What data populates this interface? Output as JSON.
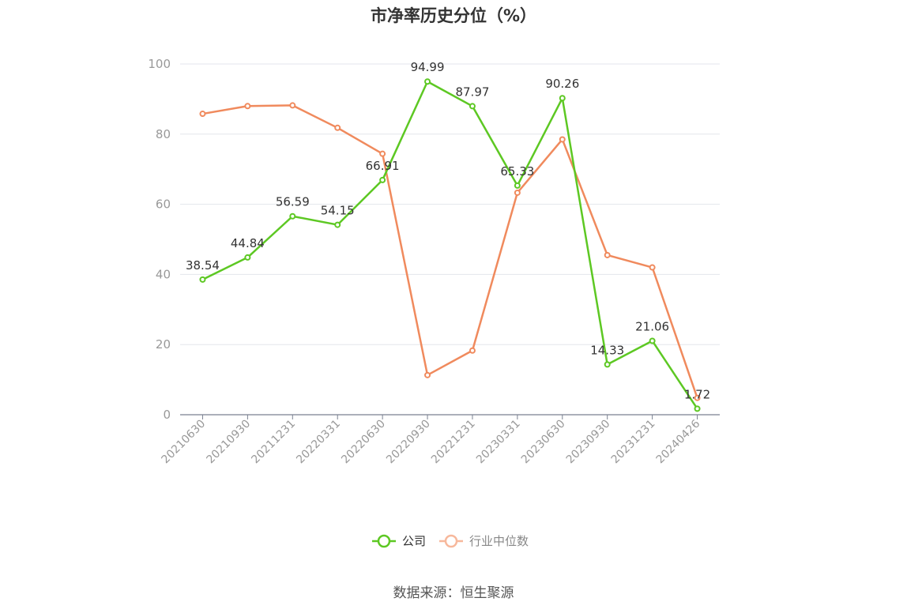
{
  "chart_data": {
    "type": "line",
    "title": "市净率历史分位（%）",
    "categories": [
      "20210630",
      "20210930",
      "20211231",
      "20220331",
      "20220630",
      "20220930",
      "20221231",
      "20230331",
      "20230630",
      "20230930",
      "20231231",
      "20240426"
    ],
    "ylim": [
      0,
      100
    ],
    "yticks": [
      0,
      20,
      40,
      60,
      80,
      100
    ],
    "grid": true,
    "legend_position": "bottom",
    "series": [
      {
        "name": "公司",
        "color": "#5dc823",
        "values": [
          38.54,
          44.84,
          56.59,
          54.15,
          66.91,
          94.99,
          87.97,
          65.33,
          90.26,
          14.33,
          21.06,
          1.72
        ],
        "labels": [
          "38.54",
          "44.84",
          "56.59",
          "54.15",
          "66.91",
          "94.99",
          "87.97",
          "65.33",
          "90.26",
          "14.33",
          "21.06",
          "1.72"
        ]
      },
      {
        "name": "行业中位数",
        "color": "#f08a5d",
        "values": [
          85.8,
          88.0,
          88.2,
          81.8,
          74.4,
          11.3,
          18.3,
          63.3,
          78.5,
          45.5,
          42.0,
          4.8
        ]
      }
    ],
    "source": "数据来源：恒生聚源"
  }
}
